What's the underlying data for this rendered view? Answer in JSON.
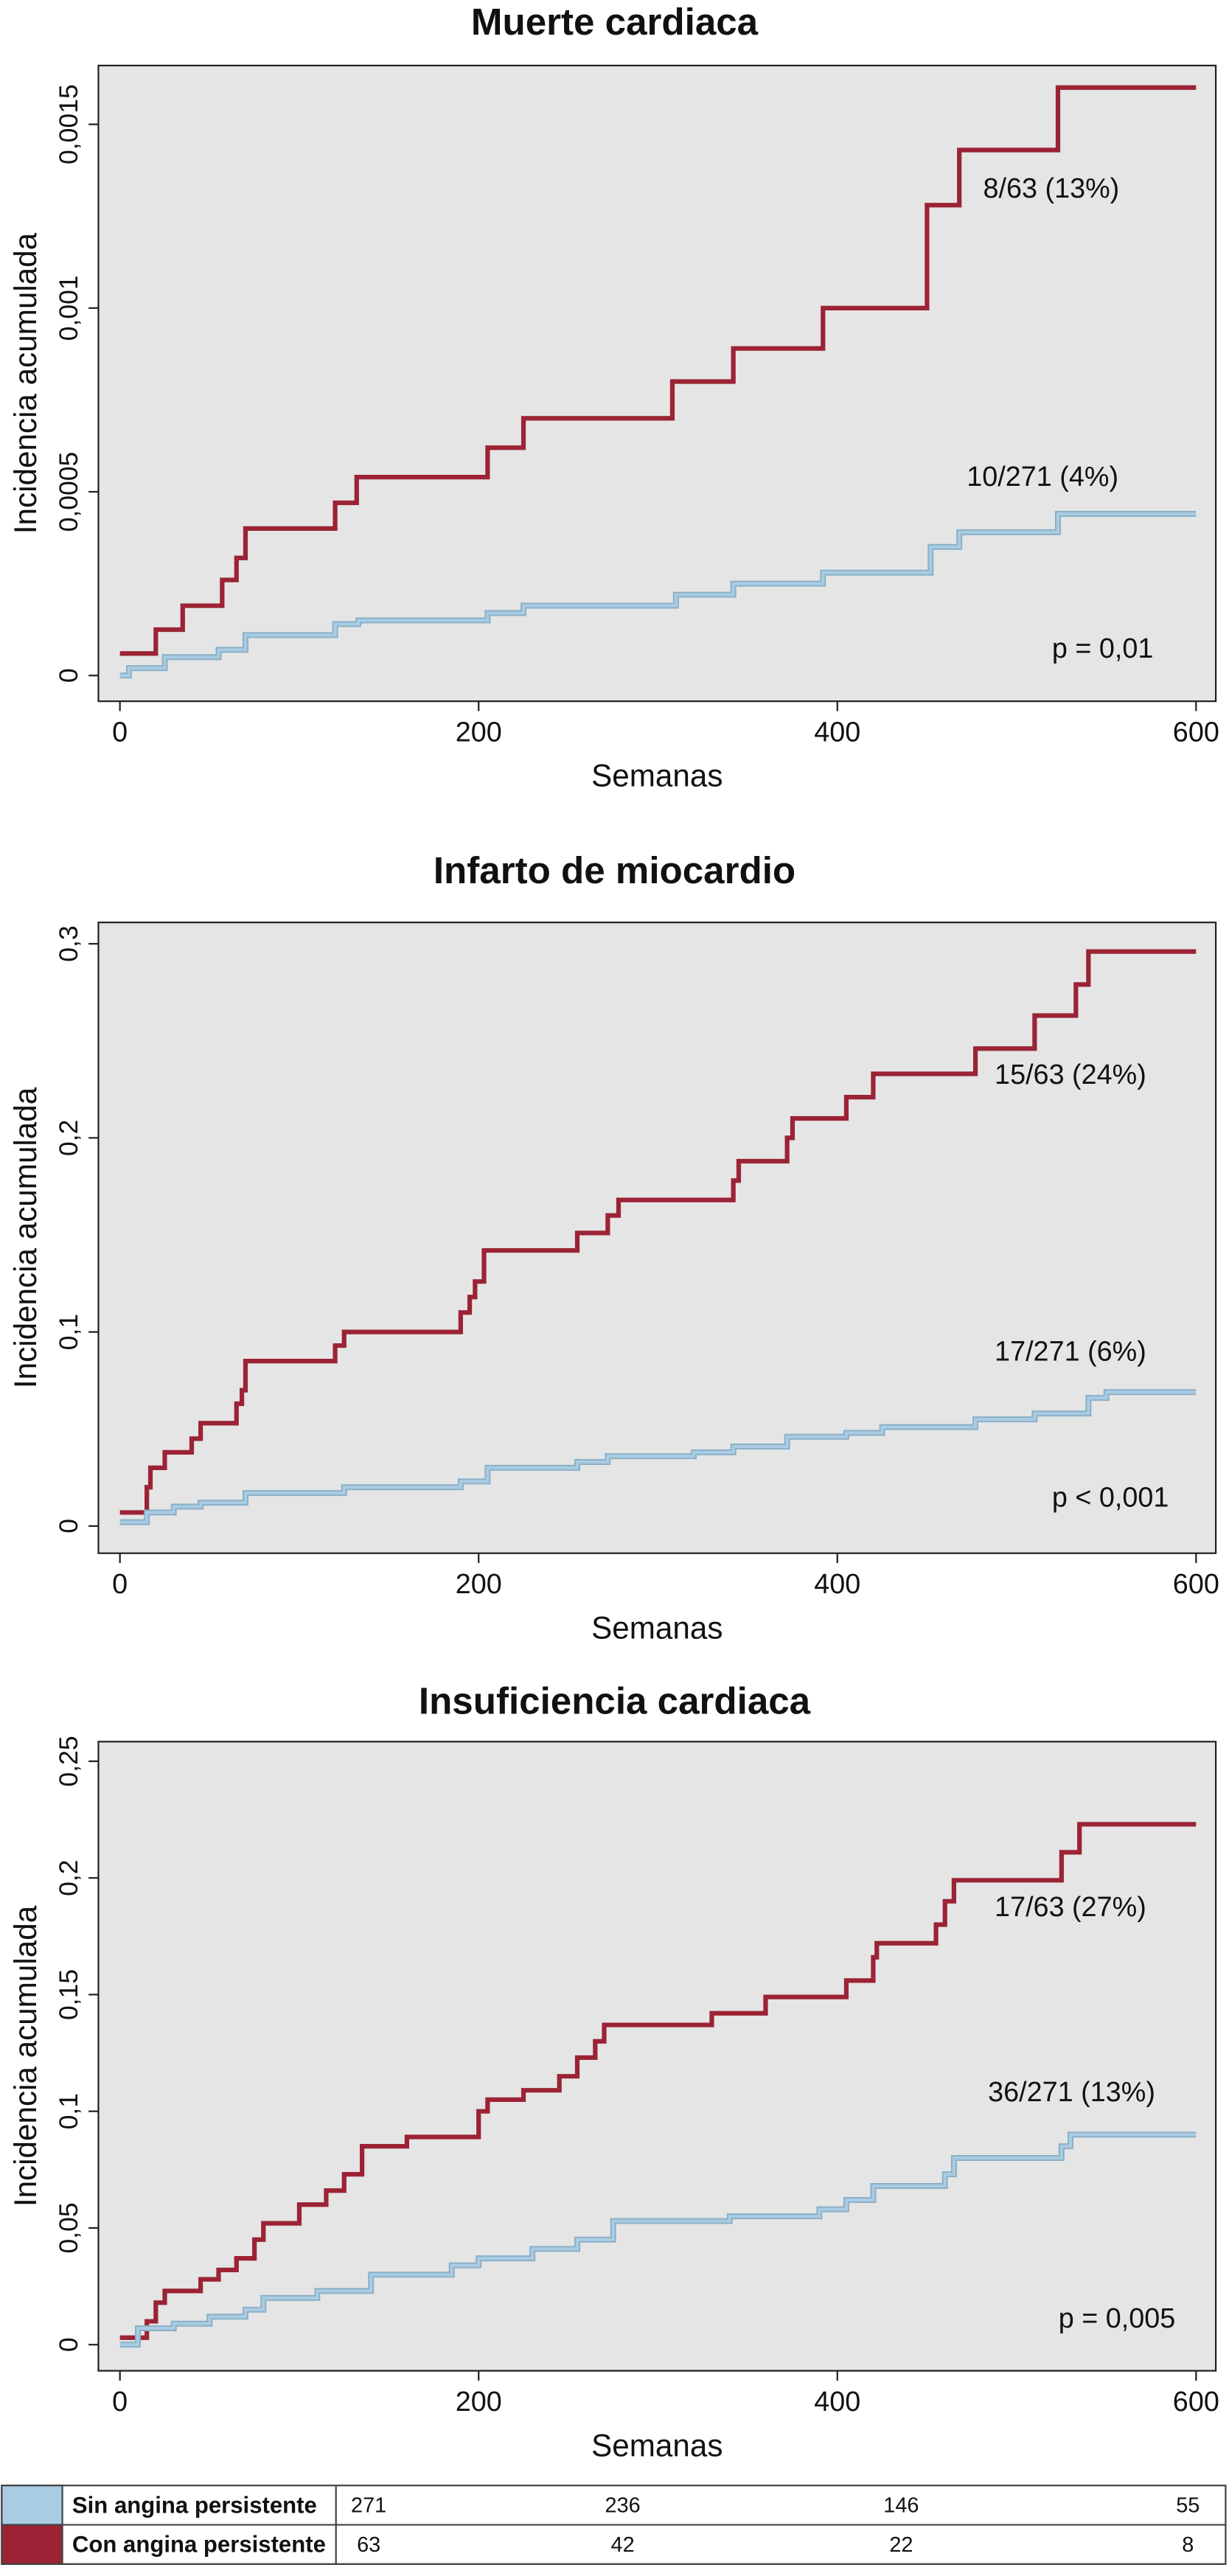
{
  "chart_data": [
    {
      "type": "line",
      "step": true,
      "title": "Muerte cardiaca",
      "ylabel": "Incidencia acumulada",
      "xlabel": "Semanas",
      "xlim": [
        -12,
        611
      ],
      "xticks": [
        0,
        200,
        400,
        600
      ],
      "ylim": [
        -7e-05,
        0.00166
      ],
      "yticks": [
        0,
        {
          "value": 0.0005,
          "label": "0,0005"
        },
        {
          "value": 0.001,
          "label": "0,001"
        },
        {
          "value": 0.0015,
          "label": "0,0015"
        }
      ],
      "annotations": [
        "8/63 (13%)",
        "10/271 (4%)",
        "p = 0,01"
      ],
      "series": [
        {
          "color": "#9b2335",
          "x": [
            0,
            20,
            35,
            57,
            65,
            70,
            120,
            132,
            205,
            225,
            308,
            342,
            392,
            450,
            468,
            523,
            600
          ],
          "values": [
            6e-05,
            0.000125,
            0.00019,
            0.00026,
            0.00032,
            0.0004,
            0.00047,
            0.00054,
            0.00062,
            0.0007,
            0.0008,
            0.00089,
            0.001,
            0.00128,
            0.00143,
            0.0016,
            0.0016
          ]
        },
        {
          "color": "#a9cce3",
          "x": [
            0,
            5,
            25,
            55,
            70,
            120,
            133,
            205,
            225,
            310,
            342,
            392,
            452,
            468,
            523,
            600
          ],
          "values": [
            0,
            2e-05,
            5e-05,
            7e-05,
            0.00011,
            0.00014,
            0.00015,
            0.00017,
            0.00019,
            0.00022,
            0.00025,
            0.00028,
            0.00035,
            0.00039,
            0.00044,
            0.00044
          ]
        }
      ]
    },
    {
      "type": "line",
      "step": true,
      "title": "Infarto de miocardio",
      "ylabel": "Incidencia acumulada",
      "xlabel": "Semanas",
      "xlim": [
        -12,
        611
      ],
      "xticks": [
        0,
        200,
        400,
        600
      ],
      "ylim": [
        -0.014,
        0.311
      ],
      "yticks": [
        0,
        {
          "value": 0.1,
          "label": "0,1"
        },
        {
          "value": 0.2,
          "label": "0,2"
        },
        {
          "value": 0.3,
          "label": "0,3"
        }
      ],
      "annotations": [
        "15/63 (24%)",
        "17/271 (6%)",
        "p < 0,001"
      ],
      "series": [
        {
          "color": "#9b2335",
          "x": [
            0,
            15,
            17,
            25,
            40,
            45,
            65,
            68,
            70,
            120,
            125,
            190,
            195,
            198,
            203,
            255,
            272,
            278,
            342,
            345,
            372,
            375,
            405,
            420,
            477,
            510,
            533,
            540,
            600
          ],
          "values": [
            0.007,
            0.02,
            0.03,
            0.038,
            0.045,
            0.053,
            0.063,
            0.07,
            0.085,
            0.093,
            0.1,
            0.11,
            0.118,
            0.126,
            0.142,
            0.151,
            0.16,
            0.168,
            0.178,
            0.188,
            0.2,
            0.21,
            0.221,
            0.233,
            0.246,
            0.263,
            0.279,
            0.296,
            0.296
          ]
        },
        {
          "color": "#a9cce3",
          "x": [
            0,
            15,
            30,
            45,
            70,
            125,
            190,
            205,
            255,
            272,
            320,
            342,
            372,
            405,
            425,
            477,
            510,
            540,
            550,
            600
          ],
          "values": [
            0.002,
            0.007,
            0.01,
            0.012,
            0.017,
            0.02,
            0.023,
            0.03,
            0.033,
            0.036,
            0.038,
            0.041,
            0.046,
            0.048,
            0.051,
            0.055,
            0.058,
            0.066,
            0.069,
            0.069
          ]
        }
      ]
    },
    {
      "type": "line",
      "step": true,
      "title": "Insuficiencia cardiaca",
      "ylabel": "Incidencia acumulada",
      "xlabel": "Semanas",
      "xlim": [
        -12,
        611
      ],
      "xticks": [
        0,
        200,
        400,
        600
      ],
      "ylim": [
        -0.0112,
        0.2584
      ],
      "yticks": [
        0,
        {
          "value": 0.05,
          "label": "0,05"
        },
        {
          "value": 0.1,
          "label": "0,1"
        },
        {
          "value": 0.15,
          "label": "0,15"
        },
        {
          "value": 0.2,
          "label": "0,2"
        },
        {
          "value": 0.25,
          "label": "0,25"
        }
      ],
      "annotations": [
        "17/63 (27%)",
        "36/271 (13%)",
        "p = 0,005"
      ],
      "series": [
        {
          "color": "#9b2335",
          "x": [
            0,
            15,
            20,
            25,
            45,
            55,
            65,
            75,
            80,
            100,
            115,
            125,
            135,
            160,
            200,
            205,
            225,
            245,
            255,
            265,
            270,
            330,
            360,
            405,
            420,
            422,
            455,
            460,
            465,
            525,
            535,
            600
          ],
          "values": [
            0.003,
            0.01,
            0.018,
            0.023,
            0.028,
            0.032,
            0.037,
            0.045,
            0.052,
            0.06,
            0.066,
            0.073,
            0.085,
            0.089,
            0.1,
            0.105,
            0.109,
            0.115,
            0.123,
            0.13,
            0.137,
            0.142,
            0.149,
            0.156,
            0.166,
            0.172,
            0.18,
            0.19,
            0.199,
            0.211,
            0.223,
            0.223
          ]
        },
        {
          "color": "#a9cce3",
          "x": [
            0,
            10,
            30,
            50,
            70,
            80,
            110,
            140,
            185,
            200,
            230,
            255,
            275,
            340,
            390,
            405,
            420,
            460,
            465,
            525,
            530,
            600
          ],
          "values": [
            0,
            0.007,
            0.009,
            0.012,
            0.015,
            0.02,
            0.023,
            0.03,
            0.034,
            0.037,
            0.041,
            0.045,
            0.053,
            0.055,
            0.058,
            0.062,
            0.068,
            0.073,
            0.08,
            0.085,
            0.09,
            0.09
          ]
        }
      ]
    }
  ],
  "risk_table": {
    "rows": [
      {
        "name": "Sin angina persistente",
        "color": "#a9cce3",
        "values": [
          271,
          236,
          146,
          55
        ]
      },
      {
        "name": "Con angina persistente",
        "color": "#9b2335",
        "values": [
          63,
          42,
          22,
          8
        ]
      }
    ]
  }
}
